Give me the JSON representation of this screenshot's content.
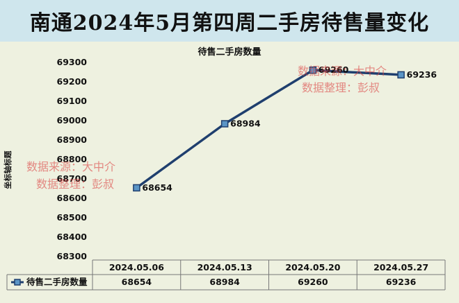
{
  "header": {
    "title": "南通2024年5月第四周二手房待售量变化"
  },
  "colors": {
    "line": "#1f3f6e",
    "marker_fill": "#5b95c6",
    "header_bg": "#cfe6ed",
    "plot_bg": "#eef1e0",
    "watermark": "#dc4646"
  },
  "chart_data": {
    "type": "line",
    "title": "待售二手房数量",
    "ylabel": "坐标轴标题",
    "xlabel": "",
    "categories": [
      "2024.05.06",
      "2024.05.13",
      "2024.05.20",
      "2024.05.27"
    ],
    "series": [
      {
        "name": "待售二手房数量",
        "values": [
          68654,
          68984,
          69260,
          69236
        ]
      }
    ],
    "ylim": [
      68300,
      69300
    ],
    "ytick_step": 100,
    "grid": false,
    "data_table": true,
    "data_labels": true
  },
  "watermarks": [
    {
      "line1": "数据来源：大中介",
      "line2": "数据整理：彭叔"
    },
    {
      "line1": "数据来源：大中介",
      "line2": "数据整理：彭叔"
    }
  ]
}
